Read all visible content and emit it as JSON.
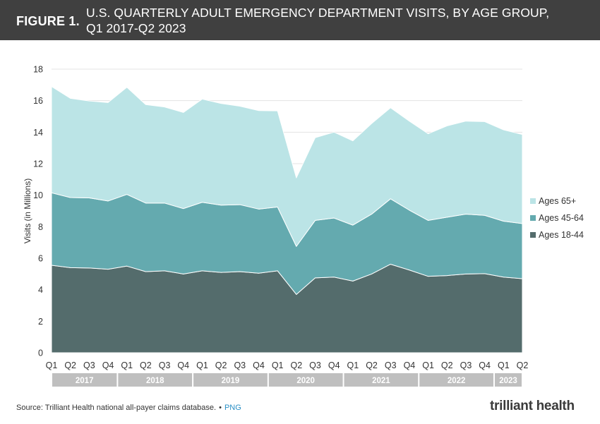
{
  "header": {
    "figure_label": "FIGURE 1.",
    "title_line1": "U.S. QUARTERLY ADULT EMERGENCY DEPARTMENT VISITS, BY AGE GROUP,",
    "title_line2": "Q1 2017-Q2 2023"
  },
  "footer": {
    "source": "Source: Trilliant Health national all-payer claims database.",
    "separator": "•",
    "png_link": "PNG",
    "logo": "trilliant health"
  },
  "colors": {
    "age_18_44": "#546c6c",
    "age_45_64": "#64aaaf",
    "age_65_plus": "#bbe4e6",
    "year_band": "#bfbfbf",
    "grid": "#e3e3e3"
  },
  "chart_data": {
    "type": "area",
    "stacked": true,
    "title": "U.S. QUARTERLY ADULT EMERGENCY DEPARTMENT VISITS, BY AGE GROUP, Q1 2017-Q2 2023",
    "ylabel": "Visits (in Millions)",
    "xlabel": "",
    "ylim": [
      0,
      18
    ],
    "yticks": [
      0,
      2,
      4,
      6,
      8,
      10,
      12,
      14,
      16,
      18
    ],
    "grid": true,
    "legend_position": "right",
    "categories": [
      "Q1",
      "Q2",
      "Q3",
      "Q4",
      "Q1",
      "Q2",
      "Q3",
      "Q4",
      "Q1",
      "Q2",
      "Q3",
      "Q4",
      "Q1",
      "Q2",
      "Q3",
      "Q4",
      "Q1",
      "Q2",
      "Q3",
      "Q4",
      "Q1",
      "Q2",
      "Q3",
      "Q4",
      "Q1",
      "Q2"
    ],
    "years": [
      {
        "label": "2017",
        "start": 0,
        "end": 3
      },
      {
        "label": "2018",
        "start": 4,
        "end": 7
      },
      {
        "label": "2019",
        "start": 8,
        "end": 11
      },
      {
        "label": "2020",
        "start": 12,
        "end": 15
      },
      {
        "label": "2021",
        "start": 16,
        "end": 19
      },
      {
        "label": "2022",
        "start": 20,
        "end": 23
      },
      {
        "label": "2023",
        "start": 24,
        "end": 25
      }
    ],
    "legend": [
      "Ages 65+",
      "Ages 45-64",
      "Ages 18-44"
    ],
    "series": [
      {
        "name": "Ages 18-44",
        "values": [
          5.55,
          5.4,
          5.38,
          5.3,
          5.5,
          5.15,
          5.2,
          5.0,
          5.2,
          5.1,
          5.15,
          5.05,
          5.2,
          3.7,
          4.75,
          4.8,
          4.55,
          5.0,
          5.62,
          5.25,
          4.85,
          4.9,
          5.0,
          5.02,
          4.8,
          4.7
        ]
      },
      {
        "name": "Ages 45-64",
        "values": [
          4.6,
          4.45,
          4.45,
          4.33,
          4.55,
          4.35,
          4.3,
          4.15,
          4.35,
          4.27,
          4.25,
          4.07,
          4.05,
          3.05,
          3.65,
          3.75,
          3.55,
          3.8,
          4.15,
          3.8,
          3.55,
          3.7,
          3.8,
          3.7,
          3.55,
          3.5
        ]
      },
      {
        "name": "Ages 65+",
        "values": [
          6.75,
          6.3,
          6.15,
          6.25,
          6.8,
          6.25,
          6.1,
          6.1,
          6.55,
          6.45,
          6.25,
          6.25,
          6.1,
          4.35,
          5.25,
          5.45,
          5.35,
          5.75,
          5.78,
          5.65,
          5.5,
          5.8,
          5.9,
          5.95,
          5.8,
          5.65
        ]
      }
    ]
  }
}
